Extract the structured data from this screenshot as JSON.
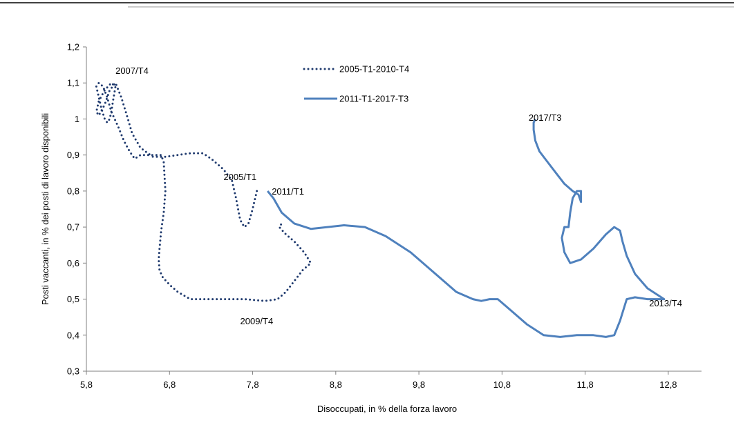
{
  "chart_data": {
    "type": "line",
    "xlabel": "Disoccupati, in % della forza lavoro",
    "ylabel": "Posti vaccanti, in % dei posti di lavoro disponibili",
    "xlim": [
      5.8,
      13.2
    ],
    "ylim": [
      0.3,
      1.2
    ],
    "x_ticks": [
      "5,8",
      "6,8",
      "7,8",
      "8,8",
      "9,8",
      "10,8",
      "11,8",
      "12,8"
    ],
    "x_tick_values": [
      5.8,
      6.8,
      7.8,
      8.8,
      9.8,
      10.8,
      11.8,
      12.8
    ],
    "y_ticks": [
      "0,3",
      "0,4",
      "0,5",
      "0,6",
      "0,7",
      "0,8",
      "0,9",
      "1",
      "1,1",
      "1,2"
    ],
    "y_tick_values": [
      0.3,
      0.4,
      0.5,
      0.6,
      0.7,
      0.8,
      0.9,
      1.0,
      1.1,
      1.2
    ],
    "grid": false,
    "legend_position": "top-center",
    "series": [
      {
        "name": "2005-T1-2010-T4",
        "color": "#1f3a6e",
        "style": "dotted",
        "x": [
          7.85,
          7.8,
          7.75,
          7.7,
          7.65,
          7.6,
          7.55,
          7.45,
          7.35,
          7.3,
          7.2,
          7.05,
          6.9,
          6.75,
          6.6,
          6.45,
          6.35,
          6.3,
          6.22,
          6.15,
          6.08,
          6.02,
          5.95,
          5.92,
          5.95,
          6.02,
          6.1,
          6.15,
          6.12,
          6.1,
          6.08,
          6.05,
          6.02,
          5.98,
          5.95,
          5.92,
          5.95,
          6.0,
          6.05,
          6.1,
          6.18,
          6.25,
          6.32,
          6.38,
          6.42,
          6.45,
          6.5,
          6.55,
          6.62,
          6.7,
          6.73,
          6.75,
          6.73,
          6.7,
          6.68,
          6.67,
          6.68,
          6.72,
          6.8,
          6.9,
          7.05,
          7.25,
          7.45,
          7.7,
          7.95,
          8.1,
          8.2,
          8.3,
          8.4,
          8.5,
          8.42,
          8.3,
          8.2,
          8.12,
          8.15
        ],
        "y": [
          0.8,
          0.75,
          0.71,
          0.7,
          0.72,
          0.78,
          0.83,
          0.86,
          0.88,
          0.89,
          0.905,
          0.905,
          0.9,
          0.895,
          0.895,
          0.92,
          0.96,
          1.0,
          1.06,
          1.1,
          1.08,
          1.04,
          1.01,
          1.02,
          1.05,
          1.08,
          1.1,
          1.09,
          1.05,
          1.02,
          1.0,
          0.99,
          1.0,
          1.03,
          1.06,
          1.09,
          1.1,
          1.09,
          1.06,
          1.02,
          0.98,
          0.94,
          0.91,
          0.89,
          0.895,
          0.9,
          0.9,
          0.9,
          0.9,
          0.9,
          0.88,
          0.8,
          0.74,
          0.69,
          0.64,
          0.61,
          0.58,
          0.56,
          0.54,
          0.52,
          0.5,
          0.5,
          0.5,
          0.5,
          0.495,
          0.5,
          0.52,
          0.55,
          0.58,
          0.6,
          0.63,
          0.66,
          0.68,
          0.7,
          0.71
        ]
      },
      {
        "name": "2011-T1-2017-T3",
        "color": "#4f81bd",
        "style": "solid",
        "x": [
          7.98,
          8.05,
          8.15,
          8.3,
          8.5,
          8.7,
          8.9,
          9.15,
          9.4,
          9.7,
          10.0,
          10.25,
          10.45,
          10.55,
          10.65,
          10.75,
          10.9,
          11.1,
          11.3,
          11.5,
          11.7,
          11.9,
          12.05,
          12.15,
          12.22,
          12.3,
          12.4,
          12.55,
          12.65,
          12.75,
          12.55,
          12.4,
          12.3,
          12.25,
          12.22,
          12.15,
          12.05,
          11.9,
          11.75,
          11.62,
          11.55,
          11.52,
          11.55,
          11.6,
          11.62,
          11.65,
          11.7,
          11.75,
          11.75,
          11.72,
          11.65,
          11.55,
          11.45,
          11.35,
          11.25,
          11.2,
          11.18,
          11.18,
          11.2
        ],
        "y": [
          0.8,
          0.78,
          0.74,
          0.71,
          0.695,
          0.7,
          0.705,
          0.7,
          0.675,
          0.63,
          0.57,
          0.52,
          0.5,
          0.495,
          0.5,
          0.5,
          0.47,
          0.43,
          0.4,
          0.395,
          0.4,
          0.4,
          0.395,
          0.4,
          0.44,
          0.5,
          0.505,
          0.5,
          0.5,
          0.5,
          0.53,
          0.57,
          0.62,
          0.66,
          0.69,
          0.7,
          0.68,
          0.64,
          0.61,
          0.6,
          0.63,
          0.67,
          0.7,
          0.7,
          0.74,
          0.78,
          0.8,
          0.8,
          0.77,
          0.79,
          0.8,
          0.82,
          0.85,
          0.88,
          0.91,
          0.94,
          0.97,
          0.99,
          1.0
        ]
      }
    ],
    "annotations": [
      {
        "text": "2007/T4",
        "x": 6.15,
        "y": 1.125
      },
      {
        "text": "2005/T1",
        "x": 7.45,
        "y": 0.83
      },
      {
        "text": "2011/T1",
        "x": 8.03,
        "y": 0.79
      },
      {
        "text": "2009/T4",
        "x": 7.65,
        "y": 0.43
      },
      {
        "text": "2017/T3",
        "x": 11.12,
        "y": 0.995
      },
      {
        "text": "2013/T4",
        "x": 12.57,
        "y": 0.48
      }
    ]
  }
}
